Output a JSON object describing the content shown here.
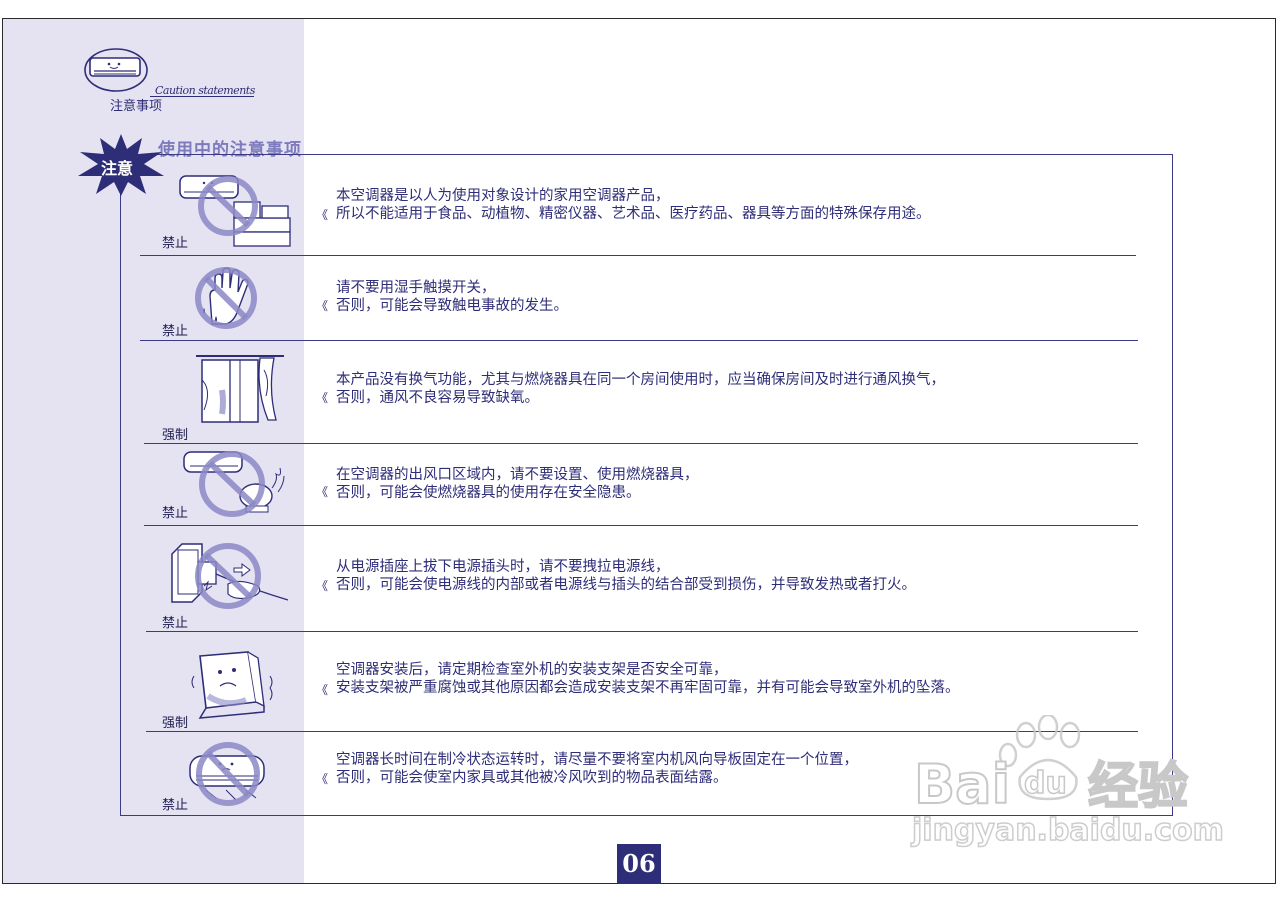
{
  "header": {
    "caution_en": "Caution statements",
    "caution_cn": "注意事项"
  },
  "section": {
    "title": "使用中的注意事项",
    "badge": "注意"
  },
  "items": [
    {
      "tag": "禁止",
      "line1": "本空调器是以人为使用对象设计的家用空调器产品，",
      "line2": "所以不能适用于食品、动植物、精密仪器、艺术品、医疗药品、器具等方面的特殊保存用途。",
      "icon": "ac-storage-prohibited-icon"
    },
    {
      "tag": "禁止",
      "line1": "请不要用湿手触摸开关，",
      "line2": "否则，可能会导致触电事故的发生。",
      "icon": "wet-hand-prohibited-icon"
    },
    {
      "tag": "强制",
      "line1": "本产品没有换气功能，尤其与燃烧器具在同一个房间使用时，应当确保房间及时进行通风换气，",
      "line2": "否则，通风不良容易导致缺氧。",
      "icon": "window-ventilation-icon"
    },
    {
      "tag": "禁止",
      "line1": "在空调器的出风口区域内，请不要设置、使用燃烧器具，",
      "line2": "否则，可能会使燃烧器具的使用存在安全隐患。",
      "icon": "burner-prohibited-icon"
    },
    {
      "tag": "禁止",
      "line1": "从电源插座上拔下电源插头时，请不要拽拉电源线，",
      "line2": "否则，可能会使电源线的内部或者电源线与插头的结合部受到损伤，并导致发热或者打火。",
      "icon": "pull-cord-prohibited-icon"
    },
    {
      "tag": "强制",
      "line1": "空调器安装后，请定期检查室外机的安装支架是否安全可靠，",
      "line2": "安装支架被严重腐蚀或其他原因都会造成安装支架不再牢固可靠，并有可能会导致室外机的坠落。",
      "icon": "outdoor-unit-bracket-icon"
    },
    {
      "tag": "禁止",
      "line1": "空调器长时间在制冷状态运转时，请尽量不要将室内机风向导板固定在一个位置，",
      "line2": "否则，可能会使室内家具或其他被冷风吹到的物品表面结露。",
      "icon": "fixed-louver-prohibited-icon"
    }
  ],
  "mark_glyph": "《",
  "page_number": "06",
  "watermark": {
    "logo_text": "Baidu经验",
    "url": "jingyan.baidu.com"
  },
  "colors": {
    "ink": "#2e2d78",
    "band": "#e5e3f1",
    "prohibit_circle": "#8b88c6"
  }
}
